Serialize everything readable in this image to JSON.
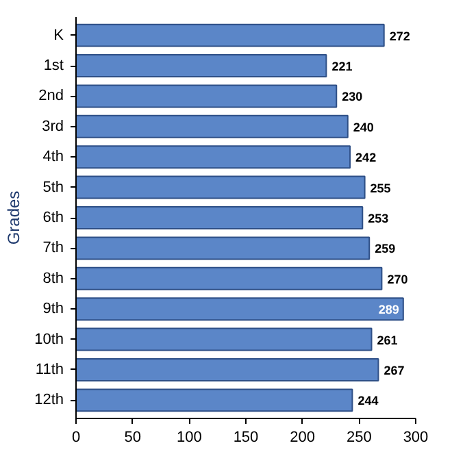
{
  "chart_data": {
    "type": "bar",
    "orientation": "horizontal",
    "ylabel": "Grades",
    "categories": [
      "K",
      "1st",
      "2nd",
      "3rd",
      "4th",
      "5th",
      "6th",
      "7th",
      "8th",
      "9th",
      "10th",
      "11th",
      "12th"
    ],
    "values": [
      272,
      221,
      230,
      240,
      242,
      255,
      253,
      259,
      270,
      289,
      261,
      267,
      244
    ],
    "color": "#5b86c8",
    "data_labels": true,
    "xlim": [
      0,
      300
    ],
    "xticks": [
      0,
      50,
      100,
      150,
      200,
      250,
      300
    ],
    "grid": false
  }
}
